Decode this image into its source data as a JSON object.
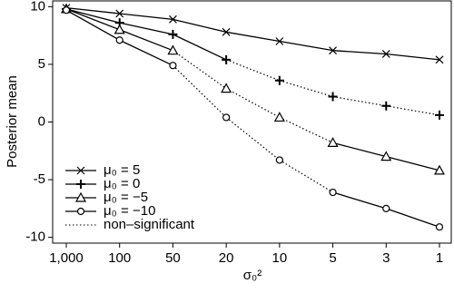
{
  "chart_data": {
    "type": "line",
    "y_label": "Posterior mean",
    "x_label": "σ₀²",
    "categories": [
      "1,000",
      "100",
      "50",
      "20",
      "10",
      "5",
      "3",
      "1"
    ],
    "ylim": [
      -10.5,
      10.5
    ],
    "yticks": [
      -10,
      -5,
      0,
      5,
      10
    ],
    "nonsignificant_label": "non–significant",
    "series": [
      {
        "name": "μ₀  = 5",
        "color": "#000000",
        "marker": "x",
        "values": [
          9.9,
          9.4,
          8.9,
          7.8,
          7.0,
          6.2,
          5.9,
          5.4
        ],
        "significant": [
          true,
          true,
          true,
          true,
          true,
          true,
          true,
          true
        ]
      },
      {
        "name": "μ₀  = 0",
        "color": "#000000",
        "marker": "plus",
        "values": [
          9.8,
          8.6,
          7.6,
          5.4,
          3.6,
          2.2,
          1.4,
          0.6
        ],
        "significant": [
          true,
          true,
          true,
          true,
          false,
          false,
          false,
          false
        ]
      },
      {
        "name": "μ₀  = −5",
        "color": "#000000",
        "marker": "triangle",
        "values": [
          9.8,
          8.0,
          6.2,
          2.9,
          0.4,
          -1.8,
          -3.0,
          -4.2
        ],
        "significant": [
          true,
          true,
          true,
          false,
          false,
          true,
          true,
          true
        ]
      },
      {
        "name": "μ₀  = −10",
        "color": "#000000",
        "marker": "circle",
        "values": [
          9.7,
          7.1,
          4.9,
          0.4,
          -3.3,
          -6.1,
          -7.5,
          -9.1
        ],
        "significant": [
          true,
          true,
          true,
          false,
          false,
          true,
          true,
          true
        ]
      }
    ]
  }
}
